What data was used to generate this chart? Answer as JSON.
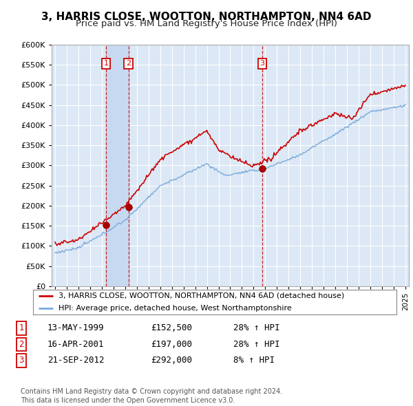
{
  "title": "3, HARRIS CLOSE, WOOTTON, NORTHAMPTON, NN4 6AD",
  "subtitle": "Price paid vs. HM Land Registry's House Price Index (HPI)",
  "title_fontsize": 11,
  "subtitle_fontsize": 9.5,
  "bg_color": "#ffffff",
  "plot_bg_color": "#dce8f5",
  "grid_color": "#ffffff",
  "price_paid_color": "#cc0000",
  "hpi_color": "#7aaadd",
  "shade_color": "#c5d8f0",
  "ylim": [
    0,
    600000
  ],
  "yticks": [
    0,
    50000,
    100000,
    150000,
    200000,
    250000,
    300000,
    350000,
    400000,
    450000,
    500000,
    550000,
    600000
  ],
  "sales": [
    {
      "date_num": 1999.37,
      "price": 152500,
      "label": "1"
    },
    {
      "date_num": 2001.29,
      "price": 197000,
      "label": "2"
    },
    {
      "date_num": 2012.73,
      "price": 292000,
      "label": "3"
    }
  ],
  "vline_dates": [
    1999.37,
    2001.29,
    2012.73
  ],
  "legend_entries": [
    "3, HARRIS CLOSE, WOOTTON, NORTHAMPTON, NN4 6AD (detached house)",
    "HPI: Average price, detached house, West Northamptonshire"
  ],
  "table_rows": [
    {
      "num": "1",
      "date": "13-MAY-1999",
      "price": "£152,500",
      "change": "28% ↑ HPI"
    },
    {
      "num": "2",
      "date": "16-APR-2001",
      "price": "£197,000",
      "change": "28% ↑ HPI"
    },
    {
      "num": "3",
      "date": "21-SEP-2012",
      "price": "£292,000",
      "change": "8% ↑ HPI"
    }
  ],
  "footer": "Contains HM Land Registry data © Crown copyright and database right 2024.\nThis data is licensed under the Open Government Licence v3.0.",
  "xmin": 1994.7,
  "xmax": 2025.3
}
